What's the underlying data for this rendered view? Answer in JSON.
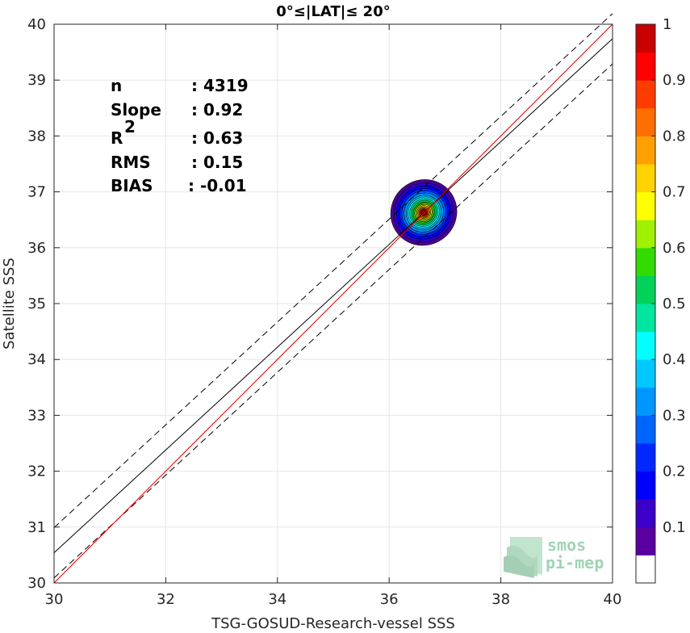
{
  "chart_data": {
    "type": "scatter",
    "title": "0°≤|LAT|≤ 20°",
    "xlabel": "TSG-GOSUD-Research-vessel SSS",
    "ylabel": "Satellite SSS",
    "xlim": [
      30,
      40
    ],
    "ylim": [
      30,
      40
    ],
    "xticks": [
      "30",
      "32",
      "34",
      "36",
      "38",
      "40"
    ],
    "yticks": [
      "30",
      "31",
      "32",
      "33",
      "34",
      "35",
      "36",
      "37",
      "38",
      "39",
      "40"
    ],
    "grid": true,
    "stats": {
      "n_label": "n",
      "n_value": ": 4319",
      "slope_label": "Slope",
      "slope_value": ": 0.92",
      "r2_label": "R",
      "r2_sup": "2",
      "r2_value": ": 0.63",
      "rms_label": "RMS",
      "rms_value": ": 0.15",
      "bias_label": "BIAS",
      "bias_value": ": -0.01"
    },
    "lines": {
      "regression": {
        "slope": 0.92,
        "intercept": 2.94,
        "color": "#000000"
      },
      "upper_bound": {
        "slope": 0.92,
        "intercept": 3.39,
        "color": "#000000",
        "dashed": true
      },
      "lower_bound": {
        "slope": 0.92,
        "intercept": 2.49,
        "color": "#000000",
        "dashed": true
      },
      "identity": {
        "slope": 1,
        "intercept": 0,
        "color": "#e00000"
      }
    },
    "density": {
      "center": [
        36.62,
        36.63
      ],
      "levels": [
        {
          "level": 0.05,
          "rx": 0.6,
          "ry": 0.58,
          "color": "#4b0099"
        },
        {
          "level": 0.1,
          "rx": 0.54,
          "ry": 0.52,
          "color": "#2f00c8"
        },
        {
          "level": 0.15,
          "rx": 0.49,
          "ry": 0.47,
          "color": "#0000ff"
        },
        {
          "level": 0.2,
          "rx": 0.44,
          "ry": 0.42,
          "color": "#0028ff"
        },
        {
          "level": 0.25,
          "rx": 0.4,
          "ry": 0.38,
          "color": "#0064ff"
        },
        {
          "level": 0.3,
          "rx": 0.36,
          "ry": 0.34,
          "color": "#0096ff"
        },
        {
          "level": 0.35,
          "rx": 0.32,
          "ry": 0.3,
          "color": "#00c8ff"
        },
        {
          "level": 0.4,
          "rx": 0.29,
          "ry": 0.27,
          "color": "#00ffff"
        },
        {
          "level": 0.45,
          "rx": 0.26,
          "ry": 0.24,
          "color": "#00e6a0"
        },
        {
          "level": 0.5,
          "rx": 0.23,
          "ry": 0.21,
          "color": "#00d25a"
        },
        {
          "level": 0.55,
          "rx": 0.2,
          "ry": 0.18,
          "color": "#32dc00"
        },
        {
          "level": 0.6,
          "rx": 0.17,
          "ry": 0.16,
          "color": "#a0f000"
        },
        {
          "level": 0.65,
          "rx": 0.15,
          "ry": 0.14,
          "color": "#ffff00"
        },
        {
          "level": 0.7,
          "rx": 0.13,
          "ry": 0.12,
          "color": "#ffd200"
        },
        {
          "level": 0.75,
          "rx": 0.11,
          "ry": 0.1,
          "color": "#ffa000"
        },
        {
          "level": 0.8,
          "rx": 0.09,
          "ry": 0.085,
          "color": "#ff6e00"
        },
        {
          "level": 0.85,
          "rx": 0.07,
          "ry": 0.068,
          "color": "#ff3c00"
        },
        {
          "level": 0.9,
          "rx": 0.055,
          "ry": 0.052,
          "color": "#ff0000"
        },
        {
          "level": 0.95,
          "rx": 0.04,
          "ry": 0.038,
          "color": "#c80000"
        }
      ]
    },
    "colorbar": {
      "range": [
        0,
        1
      ],
      "tick_values": [
        0.1,
        0.2,
        0.3,
        0.4,
        0.5,
        0.6,
        0.7,
        0.8,
        0.9,
        1
      ],
      "ticks": [
        "0.1",
        "0.2",
        "0.3",
        "0.4",
        "0.5",
        "0.6",
        "0.7",
        "0.8",
        "0.9",
        "1"
      ],
      "colors": [
        "#ffffff",
        "#5a00a0",
        "#3c00c8",
        "#0000ff",
        "#0028ff",
        "#0064ff",
        "#0096ff",
        "#00c8ff",
        "#00ffff",
        "#00e6a0",
        "#00d25a",
        "#32dc00",
        "#a0f000",
        "#ffff00",
        "#ffd200",
        "#ffa000",
        "#ff6e00",
        "#ff3c00",
        "#ff0000",
        "#c80000",
        "#8c0000"
      ]
    },
    "logo": {
      "line1": "smos",
      "line2": "pi-mep"
    }
  }
}
